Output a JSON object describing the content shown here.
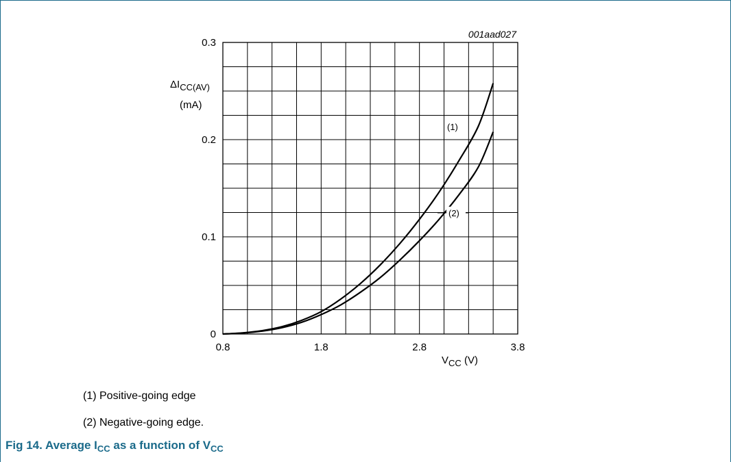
{
  "chart_data": {
    "type": "line",
    "figure_code": "001aad027",
    "xlabel": {
      "main": "V",
      "sub": "CC",
      "unit": " (V)"
    },
    "ylabel": {
      "prefix": "ΔI",
      "sub": "CC(AV)",
      "unit": "(mA)"
    },
    "xlim": [
      0.8,
      3.8
    ],
    "ylim": [
      0,
      0.3
    ],
    "x_ticks": [
      "0.8",
      "1.8",
      "2.8",
      "3.8"
    ],
    "y_ticks": [
      "0",
      "0.1",
      "0.2",
      "0.3"
    ],
    "grid": true,
    "series": [
      {
        "name": "(1)",
        "x": [
          0.8,
          1.0,
          1.2,
          1.4,
          1.6,
          1.8,
          2.0,
          2.2,
          2.4,
          2.6,
          2.8,
          3.0,
          3.2,
          3.4,
          3.55
        ],
        "values": [
          0.0,
          0.0012,
          0.0035,
          0.0075,
          0.014,
          0.023,
          0.036,
          0.052,
          0.071,
          0.093,
          0.118,
          0.146,
          0.178,
          0.214,
          0.258
        ]
      },
      {
        "name": "(2)",
        "x": [
          0.8,
          1.0,
          1.2,
          1.4,
          1.6,
          1.8,
          2.0,
          2.2,
          2.4,
          2.6,
          2.8,
          3.0,
          3.2,
          3.4,
          3.55
        ],
        "values": [
          0.0,
          0.001,
          0.003,
          0.0065,
          0.012,
          0.02,
          0.03,
          0.043,
          0.058,
          0.076,
          0.096,
          0.118,
          0.143,
          0.172,
          0.208
        ]
      }
    ]
  },
  "legend": [
    "(1) Positive-going edge",
    "(2) Negative-going edge."
  ],
  "caption": {
    "prefix": "Fig 14.   Average I",
    "sub1": "CC",
    "middle": " as a function of V",
    "sub2": "CC"
  },
  "colors": {
    "frame": "#1a6a8a",
    "caption": "#1a6a8a"
  }
}
